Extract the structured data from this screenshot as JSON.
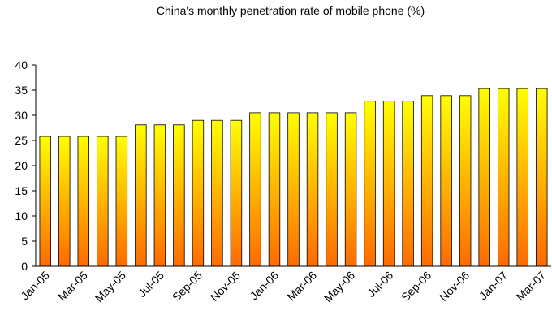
{
  "chart_data": {
    "type": "bar",
    "title": "China's monthly penetration rate of mobile phone (%)",
    "categories": [
      "Jan-05",
      null,
      "Mar-05",
      null,
      "May-05",
      null,
      "Jul-05",
      null,
      "Sep-05",
      null,
      "Nov-05",
      null,
      "Jan-06",
      null,
      "Mar-06",
      null,
      "May-06",
      null,
      "Jul-06",
      null,
      "Sep-06",
      null,
      "Nov-06",
      null,
      "Jan-07",
      null,
      "Mar-07"
    ],
    "values": [
      25.8,
      25.8,
      25.8,
      25.8,
      25.8,
      28.1,
      28.1,
      28.1,
      29,
      29,
      29,
      30.5,
      30.5,
      30.5,
      30.5,
      30.5,
      30.5,
      32.8,
      32.8,
      32.8,
      33.9,
      33.9,
      33.9,
      35.3,
      35.3,
      35.3,
      35.3
    ],
    "color": [
      "#ffff00",
      "#ff6a00"
    ],
    "ylim": [
      0,
      40
    ],
    "yticks": [
      0,
      5,
      10,
      15,
      20,
      25,
      30,
      35,
      40
    ],
    "grid": false
  }
}
